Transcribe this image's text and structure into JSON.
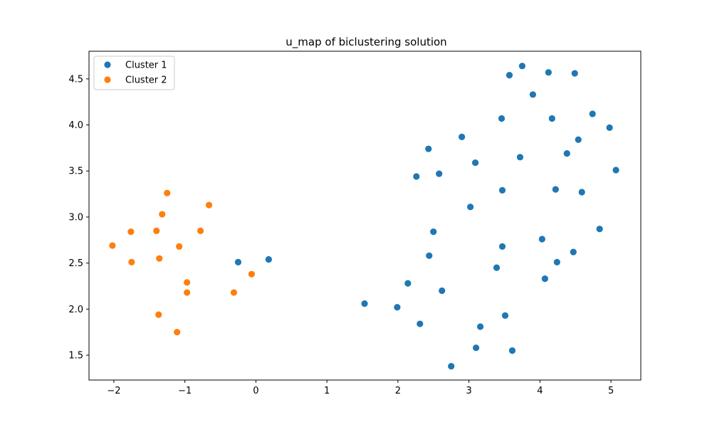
{
  "chart_data": {
    "type": "scatter",
    "title": "u_map of biclustering solution",
    "xlabel": "",
    "ylabel": "",
    "xlim": [
      -2.35,
      5.42
    ],
    "ylim": [
      1.23,
      4.8
    ],
    "xticks": [
      -2,
      -1,
      0,
      1,
      2,
      3,
      4,
      5
    ],
    "yticks": [
      1.5,
      2.0,
      2.5,
      3.0,
      3.5,
      4.0,
      4.5
    ],
    "xtick_labels": [
      "−2",
      "−1",
      "0",
      "1",
      "2",
      "3",
      "4",
      "5"
    ],
    "ytick_labels": [
      "1.5",
      "2.0",
      "2.5",
      "3.0",
      "3.5",
      "4.0",
      "4.5"
    ],
    "grid": false,
    "legend_position": "top-left",
    "series": [
      {
        "name": "Cluster 1",
        "color": "#1f77b4",
        "points": [
          [
            -0.25,
            2.51
          ],
          [
            0.18,
            2.54
          ],
          [
            1.53,
            2.06
          ],
          [
            1.99,
            2.02
          ],
          [
            2.14,
            2.28
          ],
          [
            2.26,
            3.44
          ],
          [
            2.31,
            1.84
          ],
          [
            2.43,
            3.74
          ],
          [
            2.44,
            2.58
          ],
          [
            2.5,
            2.84
          ],
          [
            2.58,
            3.47
          ],
          [
            2.62,
            2.2
          ],
          [
            2.75,
            1.38
          ],
          [
            2.9,
            3.87
          ],
          [
            3.02,
            3.11
          ],
          [
            3.09,
            3.59
          ],
          [
            3.1,
            1.58
          ],
          [
            3.16,
            1.81
          ],
          [
            3.39,
            2.45
          ],
          [
            3.46,
            4.07
          ],
          [
            3.47,
            3.29
          ],
          [
            3.47,
            2.68
          ],
          [
            3.51,
            1.93
          ],
          [
            3.57,
            4.54
          ],
          [
            3.61,
            1.55
          ],
          [
            3.72,
            3.65
          ],
          [
            3.75,
            4.64
          ],
          [
            3.9,
            4.33
          ],
          [
            4.03,
            2.76
          ],
          [
            4.07,
            2.33
          ],
          [
            4.12,
            4.57
          ],
          [
            4.17,
            4.07
          ],
          [
            4.22,
            3.3
          ],
          [
            4.24,
            2.51
          ],
          [
            4.38,
            3.69
          ],
          [
            4.47,
            2.62
          ],
          [
            4.49,
            4.56
          ],
          [
            4.54,
            3.84
          ],
          [
            4.59,
            3.27
          ],
          [
            4.74,
            4.12
          ],
          [
            4.84,
            2.87
          ],
          [
            4.98,
            3.97
          ],
          [
            5.07,
            3.51
          ]
        ]
      },
      {
        "name": "Cluster 2",
        "color": "#ff7f0e",
        "points": [
          [
            -2.02,
            2.69
          ],
          [
            -1.76,
            2.84
          ],
          [
            -1.75,
            2.51
          ],
          [
            -1.4,
            2.85
          ],
          [
            -1.36,
            2.55
          ],
          [
            -1.37,
            1.94
          ],
          [
            -1.32,
            3.03
          ],
          [
            -1.25,
            3.26
          ],
          [
            -1.11,
            1.75
          ],
          [
            -1.08,
            2.68
          ],
          [
            -0.97,
            2.29
          ],
          [
            -0.97,
            2.18
          ],
          [
            -0.78,
            2.85
          ],
          [
            -0.66,
            3.13
          ],
          [
            -0.31,
            2.18
          ],
          [
            -0.06,
            2.38
          ]
        ]
      }
    ]
  }
}
